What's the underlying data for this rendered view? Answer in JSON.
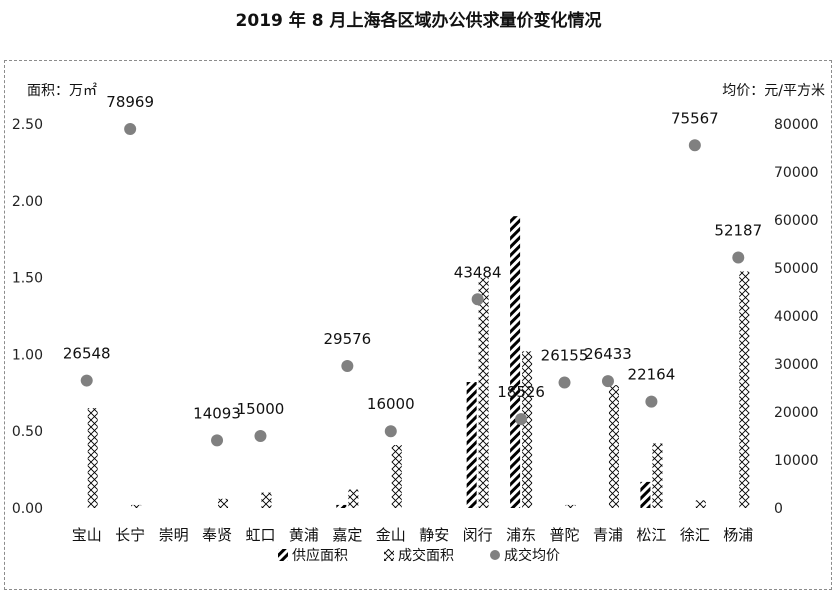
{
  "title": "2019 年 8 月上海各区域办公供求量价变化情况",
  "chart_data": {
    "type": "bar",
    "title": "2019 年 8 月上海各区域办公供求量价变化情况",
    "ylabel": "面积：万㎡",
    "y2label": "均价：元/平方米",
    "ylim": [
      0,
      2.5
    ],
    "y_ticks": [
      "0.00",
      "0.50",
      "1.00",
      "1.50",
      "2.00",
      "2.50"
    ],
    "y2lim": [
      0,
      80000
    ],
    "y2_ticks": [
      "0",
      "10000",
      "20000",
      "30000",
      "40000",
      "50000",
      "60000",
      "70000",
      "80000"
    ],
    "grid": false,
    "legend_position": "bottom",
    "categories": [
      "宝山",
      "长宁",
      "崇明",
      "奉贤",
      "虹口",
      "黄浦",
      "嘉定",
      "金山",
      "静安",
      "闵行",
      "浦东",
      "普陀",
      "青浦",
      "松江",
      "徐汇",
      "杨浦"
    ],
    "series": [
      {
        "name": "供应面积",
        "kind": "bar",
        "axis": "left",
        "values": [
          0,
          0,
          0,
          0,
          0,
          0,
          0.02,
          0,
          0,
          0.82,
          1.9,
          0,
          0,
          0.17,
          0,
          0
        ]
      },
      {
        "name": "成交面积",
        "kind": "bar",
        "axis": "left",
        "values": [
          0.65,
          0.02,
          0,
          0.06,
          0.1,
          0,
          0.12,
          0.41,
          0,
          1.5,
          1.02,
          0.02,
          0.8,
          0.42,
          0.05,
          1.54
        ]
      },
      {
        "name": "成交均价",
        "kind": "scatter",
        "axis": "right",
        "values": [
          26548,
          78969,
          null,
          14093,
          15000,
          null,
          29576,
          16000,
          null,
          43484,
          18526,
          26155,
          26433,
          22164,
          75567,
          52187
        ],
        "labels": [
          "26548",
          "78969",
          "",
          "14093",
          "15000",
          "",
          "29576",
          "16000",
          "",
          "43484",
          "18526",
          "26155",
          "26433",
          "22164",
          "75567",
          "52187"
        ]
      }
    ],
    "colors": {
      "bar_pattern": "#000000",
      "marker": "#808080",
      "frame": "#8c8c8c"
    }
  }
}
